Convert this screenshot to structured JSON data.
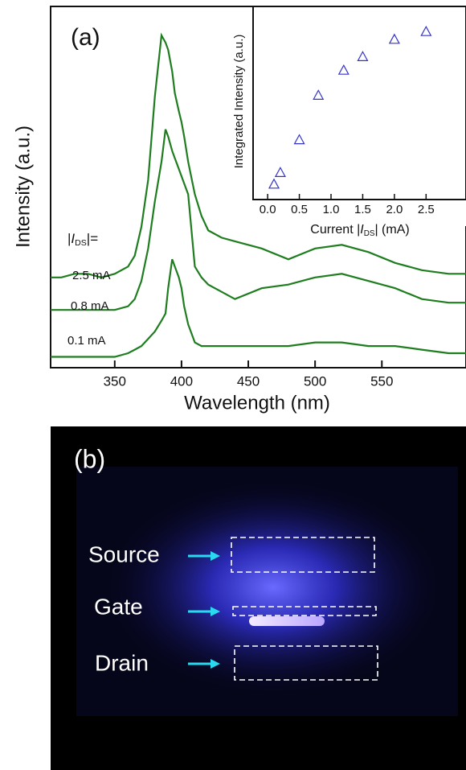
{
  "chart_data": [
    {
      "type": "line",
      "annotation": "(a)",
      "ylabel": "Intensity (a.u.)",
      "xlabel": "Wavelength (nm)",
      "legend_title": {
        "prefix": "|",
        "italic": "I",
        "sub": "DS",
        "suffix": "|="
      },
      "xlim": [
        302,
        613
      ],
      "ylim": [
        0,
        100
      ],
      "xticks": [
        350,
        400,
        450,
        500,
        550
      ],
      "x": [
        302,
        310,
        320,
        330,
        340,
        350,
        360,
        365,
        370,
        375,
        380,
        385,
        388,
        390,
        393,
        395,
        398,
        400,
        402,
        405,
        410,
        415,
        420,
        430,
        440,
        460,
        480,
        500,
        520,
        540,
        560,
        580,
        600,
        613
      ],
      "series": [
        {
          "name": "2.5 mA",
          "color": "#1e7d1e",
          "values": [
            25,
            25,
            26,
            26,
            25,
            26,
            28,
            31,
            39,
            52,
            75,
            92,
            90,
            88,
            82,
            76,
            71,
            68,
            64,
            57,
            48,
            42,
            38,
            36,
            35,
            33,
            30,
            33,
            34,
            32,
            29,
            27,
            26,
            26
          ]
        },
        {
          "name": "0.8 mA",
          "color": "#1e7d1e",
          "values": [
            16,
            16,
            16,
            16,
            16,
            16,
            17,
            19,
            24,
            33,
            46,
            57,
            66,
            64,
            60,
            58,
            55,
            53,
            51,
            48,
            28,
            25,
            23,
            21,
            19,
            22,
            23,
            25,
            26,
            24,
            22,
            19,
            18,
            18
          ]
        },
        {
          "name": "0.1 mA",
          "color": "#1e7d1e",
          "values": [
            3,
            3,
            3,
            3,
            3,
            3,
            4,
            5,
            6,
            8,
            10,
            13,
            15,
            22,
            30,
            28,
            25,
            22,
            17,
            12,
            7,
            6,
            6,
            6,
            6,
            6,
            6,
            7,
            7,
            6,
            6,
            5,
            4,
            4
          ]
        }
      ]
    },
    {
      "type": "scatter",
      "ylabel": "Integrated Intensity (a.u.)",
      "xlabel": {
        "prefix": "Current |",
        "italic": "I",
        "sub": "DS",
        "suffix": "| (mA)"
      },
      "xlim": [
        -0.23,
        3.13
      ],
      "ylim": [
        0,
        100
      ],
      "xticks": [
        {
          "value": 0,
          "label": "0.0"
        },
        {
          "value": 0.5,
          "label": "0.5"
        },
        {
          "value": 1,
          "label": "1.0"
        },
        {
          "value": 1.5,
          "label": "1.5"
        },
        {
          "value": 2,
          "label": "2.0"
        },
        {
          "value": 2.5,
          "label": "2.5"
        }
      ],
      "color": "#3333cc",
      "x": [
        0.1,
        0.2,
        0.5,
        0.8,
        1.2,
        1.5,
        2.0,
        2.5
      ],
      "values": [
        8,
        14,
        31,
        54,
        67,
        74,
        83,
        87
      ]
    }
  ],
  "photo": {
    "annotation": "(b)",
    "labels": [
      "Source",
      "Gate",
      "Drain"
    ]
  }
}
